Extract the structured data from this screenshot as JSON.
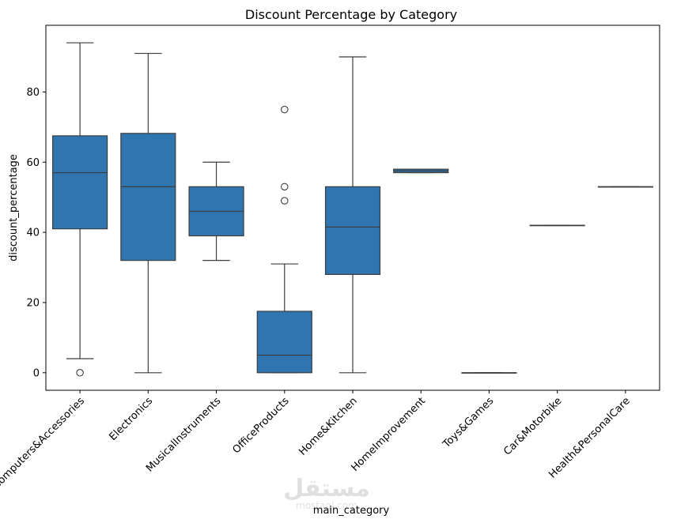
{
  "chart_data": {
    "type": "box",
    "title": "Discount Percentage by Category",
    "xlabel": "main_category",
    "ylabel": "discount_percentage",
    "ylim": [
      -5,
      99
    ],
    "yticks": [
      0,
      20,
      40,
      60,
      80
    ],
    "color": "#2f75b0",
    "outline_color": "#3d3d3d",
    "grid": false,
    "categories": [
      "Computers&Accessories",
      "Electronics",
      "MusicalInstruments",
      "OfficeProducts",
      "Home&Kitchen",
      "HomeImprovement",
      "Toys&Games",
      "Car&Motorbike",
      "Health&PersonalCare"
    ],
    "boxes": [
      {
        "whisker_low": 4,
        "q1": 41,
        "median": 57,
        "q3": 67.5,
        "whisker_high": 94,
        "outliers": [
          0
        ]
      },
      {
        "whisker_low": 0,
        "q1": 32,
        "median": 53,
        "q3": 68.2,
        "whisker_high": 91,
        "outliers": []
      },
      {
        "whisker_low": 32,
        "q1": 39,
        "median": 46,
        "q3": 53,
        "whisker_high": 60,
        "outliers": []
      },
      {
        "whisker_low": 0,
        "q1": 0,
        "median": 5,
        "q3": 17.5,
        "whisker_high": 31,
        "outliers": [
          49,
          53,
          75
        ]
      },
      {
        "whisker_low": 0,
        "q1": 28,
        "median": 41.5,
        "q3": 53,
        "whisker_high": 90,
        "outliers": []
      },
      {
        "whisker_low": 57,
        "q1": 57,
        "median": 57.5,
        "q3": 58,
        "whisker_high": 58,
        "outliers": []
      },
      {
        "whisker_low": 0,
        "q1": 0,
        "median": 0,
        "q3": 0,
        "whisker_high": 0,
        "outliers": []
      },
      {
        "whisker_low": 42,
        "q1": 42,
        "median": 42,
        "q3": 42,
        "whisker_high": 42,
        "outliers": []
      },
      {
        "whisker_low": 53,
        "q1": 53,
        "median": 53,
        "q3": 53,
        "whisker_high": 53,
        "outliers": []
      }
    ]
  },
  "watermark": {
    "text": "مستقل",
    "subtext": "mostaql.com"
  }
}
